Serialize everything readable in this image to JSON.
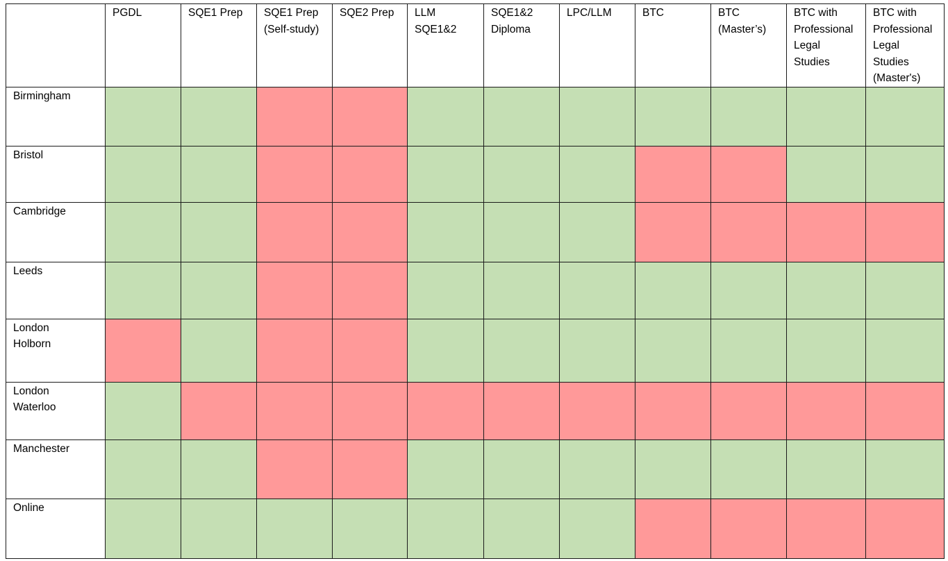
{
  "colors": {
    "available": "#c5dfb4",
    "unavailable": "#ff9999",
    "border": "#1a1a1a"
  },
  "columns": [
    "PGDL",
    "SQE1 Prep",
    "SQE1 Prep\n(Self-study)",
    "SQE2 Prep",
    "LLM\nSQE1&2",
    "SQE1&2\nDiploma",
    "LPC/LLM",
    "BTC",
    "BTC\n(Master’s)",
    "BTC with\nProfessional\nLegal\nStudies",
    "BTC with\nProfessional\nLegal\nStudies\n(Master's)"
  ],
  "rows": [
    {
      "label": "Birmingham",
      "availability": [
        1,
        1,
        0,
        0,
        1,
        1,
        1,
        1,
        1,
        1,
        1
      ]
    },
    {
      "label": "Bristol",
      "availability": [
        1,
        1,
        0,
        0,
        1,
        1,
        1,
        0,
        0,
        1,
        1
      ]
    },
    {
      "label": "Cambridge",
      "availability": [
        1,
        1,
        0,
        0,
        1,
        1,
        1,
        0,
        0,
        0,
        0
      ]
    },
    {
      "label": "Leeds",
      "availability": [
        1,
        1,
        0,
        0,
        1,
        1,
        1,
        1,
        1,
        1,
        1
      ]
    },
    {
      "label": "London\nHolborn",
      "availability": [
        0,
        1,
        0,
        0,
        1,
        1,
        1,
        1,
        1,
        1,
        1
      ]
    },
    {
      "label": "London\nWaterloo",
      "availability": [
        1,
        0,
        0,
        0,
        0,
        0,
        0,
        0,
        0,
        0,
        0
      ]
    },
    {
      "label": "Manchester",
      "availability": [
        1,
        1,
        0,
        0,
        1,
        1,
        1,
        1,
        1,
        1,
        1
      ]
    },
    {
      "label": "Online",
      "availability": [
        1,
        1,
        1,
        1,
        1,
        1,
        1,
        0,
        0,
        0,
        0
      ]
    }
  ]
}
